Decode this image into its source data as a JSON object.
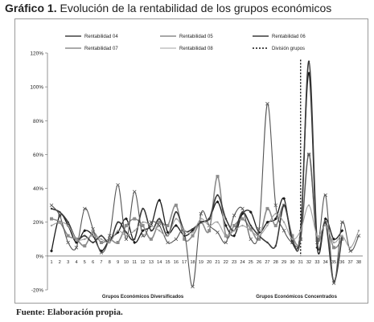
{
  "figure": {
    "title_bold": "Gráfico 1.",
    "title_rest": " Evolución de la rentabilidad de los grupos económicos",
    "source": "Fuente: Elaboración propia."
  },
  "chart_data": {
    "type": "line",
    "x": [
      1,
      2,
      3,
      4,
      5,
      6,
      7,
      8,
      9,
      10,
      11,
      12,
      13,
      14,
      15,
      16,
      17,
      18,
      19,
      20,
      21,
      22,
      23,
      24,
      25,
      26,
      27,
      28,
      29,
      30,
      31,
      32,
      33,
      34,
      35,
      36,
      37,
      38
    ],
    "ylim": [
      -20,
      120
    ],
    "yticks": [
      "-20%",
      "0%",
      "20%",
      "40%",
      "60%",
      "80%",
      "100%",
      "120%"
    ],
    "ytick_values": [
      -20,
      0,
      20,
      40,
      60,
      80,
      100,
      120
    ],
    "divider_x": 31,
    "group_labels": [
      "Grupos Económicos Diversificados",
      "Grupos Económicos Concentrados"
    ],
    "series": [
      {
        "name": "Rentabilidad 04",
        "color": "#1a1a1a",
        "values": [
          3,
          24,
          18,
          8,
          15,
          12,
          3,
          10,
          14,
          22,
          8,
          15,
          18,
          33,
          14,
          18,
          12,
          15,
          20,
          22,
          32,
          18,
          12,
          25,
          26,
          14,
          20,
          22,
          34,
          8,
          15,
          108,
          5,
          22,
          10,
          15,
          null,
          null
        ]
      },
      {
        "name": "Rentabilidad 05",
        "color": "#8c8c8c",
        "values": [
          22,
          20,
          12,
          10,
          6,
          14,
          8,
          10,
          8,
          18,
          22,
          18,
          10,
          20,
          18,
          30,
          10,
          12,
          20,
          15,
          47,
          12,
          18,
          22,
          16,
          10,
          28,
          18,
          30,
          12,
          10,
          60,
          10,
          20,
          5,
          10,
          null,
          null
        ]
      },
      {
        "name": "Rentabilidad 06",
        "color": "#3a3a3a",
        "values": [
          28,
          26,
          20,
          10,
          12,
          8,
          12,
          8,
          20,
          14,
          10,
          28,
          15,
          22,
          12,
          26,
          15,
          16,
          20,
          22,
          36,
          22,
          15,
          26,
          18,
          12,
          8,
          6,
          30,
          10,
          12,
          115,
          8,
          20,
          -15,
          12,
          null,
          null
        ]
      },
      {
        "name": "Rentabilidad 07",
        "color": "#555555",
        "values": [
          30,
          24,
          8,
          5,
          28,
          16,
          2,
          12,
          42,
          10,
          38,
          12,
          20,
          18,
          8,
          10,
          14,
          -18,
          25,
          18,
          14,
          8,
          24,
          28,
          10,
          16,
          90,
          30,
          15,
          8,
          10,
          60,
          8,
          36,
          -16,
          20,
          3,
          12
        ]
      },
      {
        "name": "Rentabilidad 08",
        "color": "#a0a0a0",
        "values": [
          18,
          20,
          18,
          10,
          10,
          12,
          10,
          8,
          15,
          12,
          15,
          20,
          18,
          15,
          12,
          22,
          15,
          14,
          22,
          18,
          20,
          12,
          15,
          18,
          15,
          12,
          18,
          25,
          20,
          10,
          15,
          30,
          12,
          18,
          8,
          12,
          5,
          15
        ]
      }
    ],
    "divider": {
      "name": "División grupos",
      "color": "#111111"
    }
  }
}
